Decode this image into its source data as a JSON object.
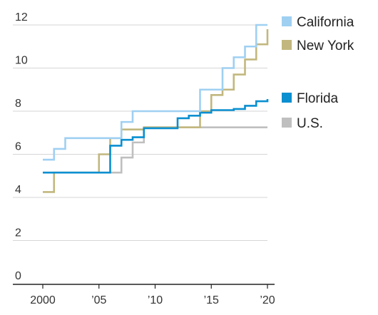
{
  "chart_data": {
    "type": "line",
    "step": true,
    "xlim": [
      2000,
      2020
    ],
    "ylim": [
      0,
      12
    ],
    "grid": true,
    "legend_placement": "right",
    "y_ticks": [
      {
        "value": 0,
        "label": "0"
      },
      {
        "value": 2,
        "label": "2"
      },
      {
        "value": 4,
        "label": "4"
      },
      {
        "value": 6,
        "label": "6"
      },
      {
        "value": 8,
        "label": "8"
      },
      {
        "value": 10,
        "label": "10"
      },
      {
        "value": 12,
        "label": "12"
      }
    ],
    "x_ticks": [
      {
        "value": 2000,
        "label": "2000"
      },
      {
        "value": 2005,
        "label": "’05"
      },
      {
        "value": 2010,
        "label": "’10"
      },
      {
        "value": 2015,
        "label": "’15"
      },
      {
        "value": 2020,
        "label": "’20"
      }
    ],
    "series": [
      {
        "name": "California",
        "color": "#9fd0f2",
        "points": [
          [
            2000,
            5.75
          ],
          [
            2001,
            6.25
          ],
          [
            2002,
            6.75
          ],
          [
            2007,
            7.5
          ],
          [
            2008,
            8.0
          ],
          [
            2014,
            9.0
          ],
          [
            2016,
            10.0
          ],
          [
            2017,
            10.5
          ],
          [
            2018,
            11.0
          ],
          [
            2019,
            12.0
          ],
          [
            2020,
            12.0
          ]
        ]
      },
      {
        "name": "New York",
        "color": "#c2b77e",
        "points": [
          [
            2000,
            4.25
          ],
          [
            2001,
            5.15
          ],
          [
            2005,
            6.0
          ],
          [
            2006,
            6.75
          ],
          [
            2007,
            7.15
          ],
          [
            2009,
            7.25
          ],
          [
            2014,
            8.0
          ],
          [
            2015,
            8.75
          ],
          [
            2016,
            9.0
          ],
          [
            2017,
            9.7
          ],
          [
            2018,
            10.4
          ],
          [
            2019,
            11.1
          ],
          [
            2020,
            11.8
          ]
        ]
      },
      {
        "name": "Florida",
        "color": "#0a8fd0",
        "points": [
          [
            2000,
            5.15
          ],
          [
            2006,
            6.4
          ],
          [
            2007,
            6.67
          ],
          [
            2008,
            6.79
          ],
          [
            2009,
            7.21
          ],
          [
            2012,
            7.67
          ],
          [
            2013,
            7.79
          ],
          [
            2014,
            7.93
          ],
          [
            2015,
            8.05
          ],
          [
            2017,
            8.1
          ],
          [
            2018,
            8.25
          ],
          [
            2019,
            8.46
          ],
          [
            2020,
            8.56
          ]
        ]
      },
      {
        "name": "U.S.",
        "color": "#bfbfbf",
        "points": [
          [
            2000,
            5.15
          ],
          [
            2007,
            5.85
          ],
          [
            2008,
            6.55
          ],
          [
            2009,
            7.25
          ],
          [
            2020,
            7.25
          ]
        ]
      }
    ]
  }
}
